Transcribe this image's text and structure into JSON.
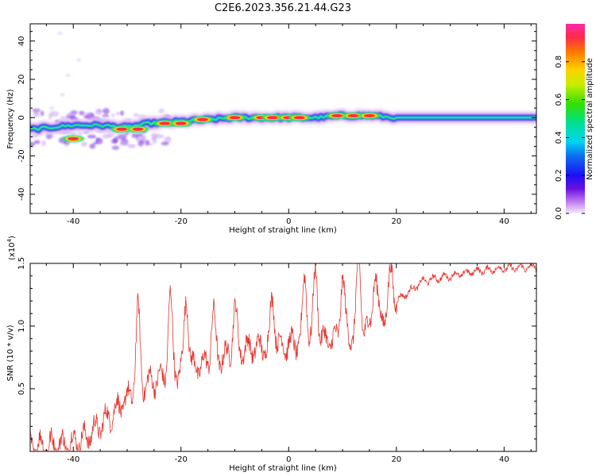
{
  "title": "C2E6.2023.356.21.44.G23",
  "chart_data": [
    {
      "type": "heatmap",
      "xlabel": "Height of straight line (km)",
      "ylabel": "Frequency (Hz)",
      "xlim": [
        -48,
        46
      ],
      "ylim": [
        -50,
        49
      ],
      "xticks": [
        -40,
        -20,
        0,
        20,
        40
      ],
      "yticks": [
        -40,
        -20,
        0,
        20,
        40
      ],
      "ridge": [
        {
          "x": -47,
          "f": -6
        },
        {
          "x": -44,
          "f": -5
        },
        {
          "x": -40,
          "f": -4
        },
        {
          "x": -35,
          "f": -4
        },
        {
          "x": -30,
          "f": -5
        },
        {
          "x": -26,
          "f": -3
        },
        {
          "x": -20,
          "f": -2
        },
        {
          "x": -15,
          "f": -1
        },
        {
          "x": -10,
          "f": 0
        },
        {
          "x": -5,
          "f": 0
        },
        {
          "x": 0,
          "f": 0
        },
        {
          "x": 5,
          "f": 0
        },
        {
          "x": 10,
          "f": 1
        },
        {
          "x": 15,
          "f": 1
        },
        {
          "x": 20,
          "f": 0
        },
        {
          "x": 30,
          "f": 0
        },
        {
          "x": 40,
          "f": 0
        },
        {
          "x": 46,
          "f": 0
        }
      ],
      "peaks": [
        {
          "x": -40,
          "f": -11
        },
        {
          "x": -31,
          "f": -6
        },
        {
          "x": -28,
          "f": -6
        },
        {
          "x": -23,
          "f": -3
        },
        {
          "x": -20,
          "f": -3
        },
        {
          "x": -16,
          "f": -1
        },
        {
          "x": -10,
          "f": 0
        },
        {
          "x": -5,
          "f": 0
        },
        {
          "x": -3,
          "f": 0
        },
        {
          "x": 0,
          "f": 0
        },
        {
          "x": 2,
          "f": 0
        },
        {
          "x": 9,
          "f": 1
        },
        {
          "x": 12,
          "f": 1
        },
        {
          "x": 15,
          "f": 1
        }
      ]
    },
    {
      "type": "line",
      "xlabel": "Height of straight line (km)",
      "ylabel": "SNR (10 * v/v)",
      "multiplier": "(x10",
      "multiplier_exp": "4",
      "multiplier_close": ")",
      "xlim": [
        -48,
        46
      ],
      "ylim": [
        0,
        1.5
      ],
      "xticks": [
        -40,
        -20,
        0,
        20,
        40
      ],
      "yticks": [
        0.5,
        1.0,
        1.5
      ],
      "ytick_labels": [
        "0.5",
        "1.0",
        "1.5"
      ],
      "color": "#e8342e",
      "envelope": [
        {
          "x": -48,
          "y": 0.04
        },
        {
          "x": -42,
          "y": 0.05
        },
        {
          "x": -38,
          "y": 0.1
        },
        {
          "x": -34,
          "y": 0.25
        },
        {
          "x": -30,
          "y": 0.42
        },
        {
          "x": -26,
          "y": 0.55
        },
        {
          "x": -20,
          "y": 0.64
        },
        {
          "x": -14,
          "y": 0.72
        },
        {
          "x": -8,
          "y": 0.82
        },
        {
          "x": -2,
          "y": 0.84
        },
        {
          "x": 4,
          "y": 0.88
        },
        {
          "x": 10,
          "y": 0.9
        },
        {
          "x": 15,
          "y": 0.98
        },
        {
          "x": 20,
          "y": 1.2
        },
        {
          "x": 25,
          "y": 1.36
        },
        {
          "x": 30,
          "y": 1.4
        },
        {
          "x": 35,
          "y": 1.44
        },
        {
          "x": 40,
          "y": 1.46
        },
        {
          "x": 46,
          "y": 1.47
        }
      ],
      "peaks": [
        {
          "x": -28,
          "y": 1.12
        },
        {
          "x": -22,
          "y": 1.22
        },
        {
          "x": -19,
          "y": 1.24
        },
        {
          "x": -14,
          "y": 1.1
        },
        {
          "x": -10,
          "y": 1.14
        },
        {
          "x": -3,
          "y": 1.22
        },
        {
          "x": 3,
          "y": 1.38
        },
        {
          "x": 5,
          "y": 1.44
        },
        {
          "x": 10,
          "y": 1.4
        },
        {
          "x": 13,
          "y": 1.52
        },
        {
          "x": 16,
          "y": 1.42
        },
        {
          "x": 19,
          "y": 1.43
        }
      ]
    }
  ],
  "colorbar": {
    "label": "Normalized spectral amplitude",
    "range": [
      0,
      1
    ],
    "ticks": [
      0.0,
      0.2,
      0.4,
      0.6,
      0.8
    ],
    "tick_labels": [
      "0.0",
      "0.2",
      "0.4",
      "0.6",
      "0.8"
    ],
    "colors": [
      "#f4e6fa",
      "#c07ff0",
      "#6a10e0",
      "#1a10f5",
      "#0f6bf0",
      "#00d6f0",
      "#00e08c",
      "#35e000",
      "#c8ee00",
      "#ffd000",
      "#ff7a00",
      "#ff2a4a",
      "#ff2aa8"
    ]
  }
}
